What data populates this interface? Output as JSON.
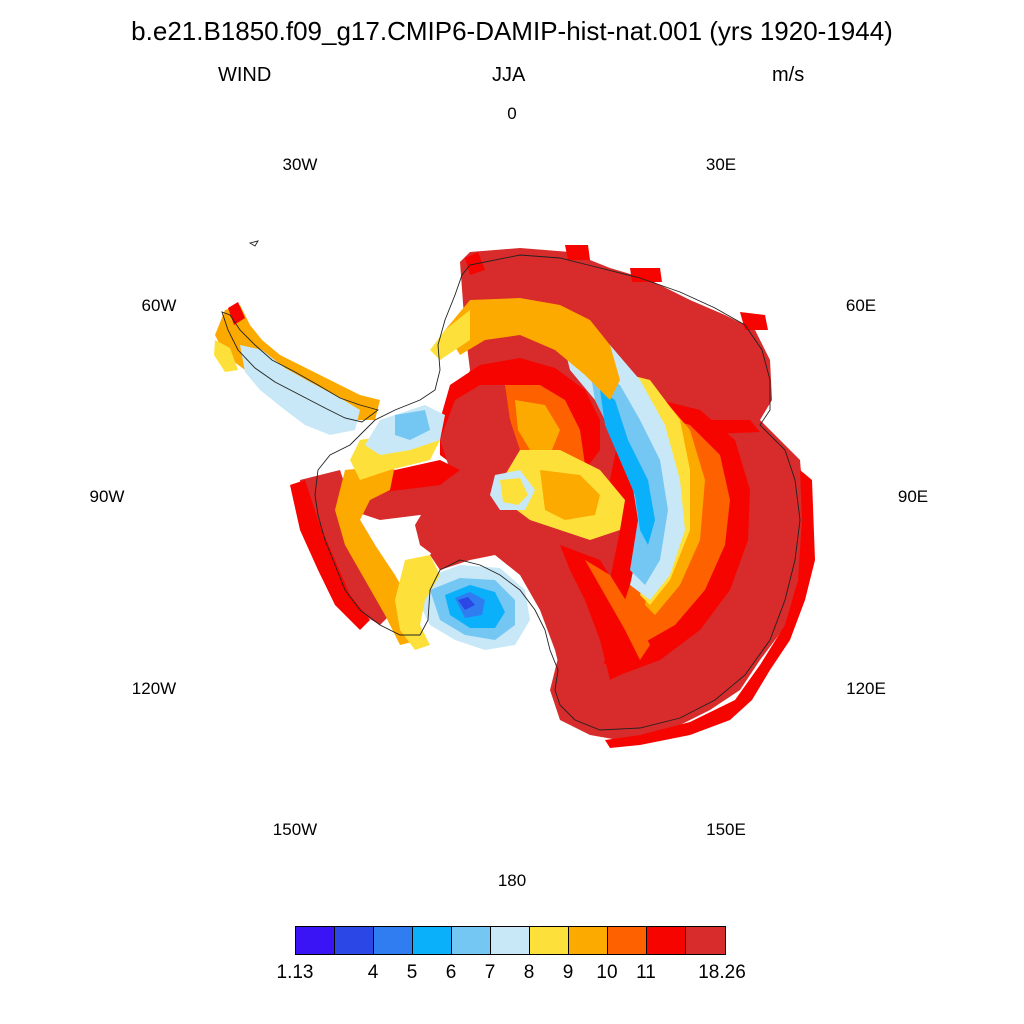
{
  "title": "b.e21.B1850.f09_g17.CMIP6-DAMIP-hist-nat.001 (yrs 1920-1944)",
  "subtitle": {
    "left": "WIND",
    "center": "JJA",
    "right": "m/s"
  },
  "longitude_labels": [
    "0",
    "30E",
    "60E",
    "90E",
    "120E",
    "150E",
    "180",
    "150W",
    "120W",
    "90W",
    "60W",
    "30W"
  ],
  "colorbar": {
    "colors": [
      "#3a14f5",
      "#2b48e6",
      "#2f7df0",
      "#0bb0fb",
      "#74c7f2",
      "#c8e8f7",
      "#fde13a",
      "#fdaa00",
      "#fd6100",
      "#f60400",
      "#d82b2b"
    ],
    "labels": [
      "1.13",
      "4",
      "5",
      "6",
      "7",
      "8",
      "9",
      "10",
      "11",
      "18.26"
    ]
  },
  "map_colors": {
    "darkred": "#d82b2b",
    "red": "#f60400",
    "orange_red": "#fd6100",
    "orange": "#fdaa00",
    "yellow": "#fde13a",
    "pale_blue": "#c8e8f7",
    "light_blue": "#74c7f2",
    "cyan": "#0bb0fb",
    "blue": "#2f7df0",
    "royal_blue": "#2b48e6"
  }
}
